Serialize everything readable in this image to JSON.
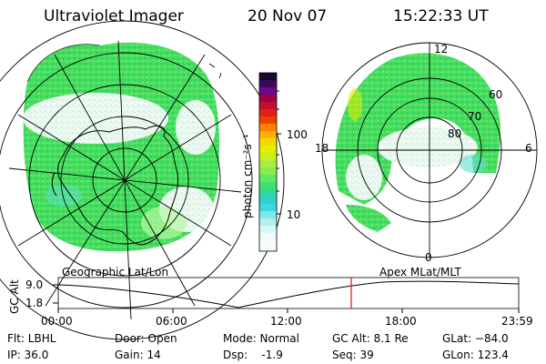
{
  "header": {
    "title": "Ultraviolet Imager",
    "date": "20 Nov 07",
    "time": "15:22:33 UT"
  },
  "colorbar": {
    "label": "photon cm⁻²s⁻¹",
    "ticks": [
      "100",
      "10"
    ],
    "colors": [
      "#1a0a2a",
      "#3a0a5a",
      "#6a0a8a",
      "#a00040",
      "#d00020",
      "#f04000",
      "#ff9000",
      "#f5d000",
      "#d8f000",
      "#b0f030",
      "#80f060",
      "#30e0a0",
      "#30d0d8",
      "#a0f0f0",
      "#e8f8f8"
    ]
  },
  "left_panel": {
    "name": "Geographic Lat/Lon",
    "colors": {
      "green": "#40e060",
      "lightgreen": "#b8f8a0",
      "white": "#f0f8f0",
      "cyan": "#60e0d0",
      "yellow": "#d8f000"
    }
  },
  "right_panel": {
    "name": "Apex MLat/MLT",
    "mlt_labels": [
      "12",
      "18",
      "6",
      "0"
    ],
    "mlat_labels": [
      "60",
      "70",
      "80"
    ]
  },
  "timeline": {
    "ylabel": "GC Alt",
    "yticks": [
      "9.0",
      "1.8"
    ],
    "xticks": [
      "00:00",
      "06:00",
      "12:00",
      "18:00",
      "23:59"
    ],
    "marker_color": "#e01010",
    "marker_time": "15:22"
  },
  "info": {
    "flt": "Flt: LBHL",
    "ip": "IP: 36.0",
    "door": "Door: Open",
    "gain": "Gain: 14",
    "mode": "Mode: Normal",
    "dsp": "Dsp:    -1.9",
    "gc_alt": "GC Alt: 8.1 Re",
    "seq": "Seq: 39",
    "glat": "GLat: −84.0",
    "glon": "GLon: 123.4"
  }
}
